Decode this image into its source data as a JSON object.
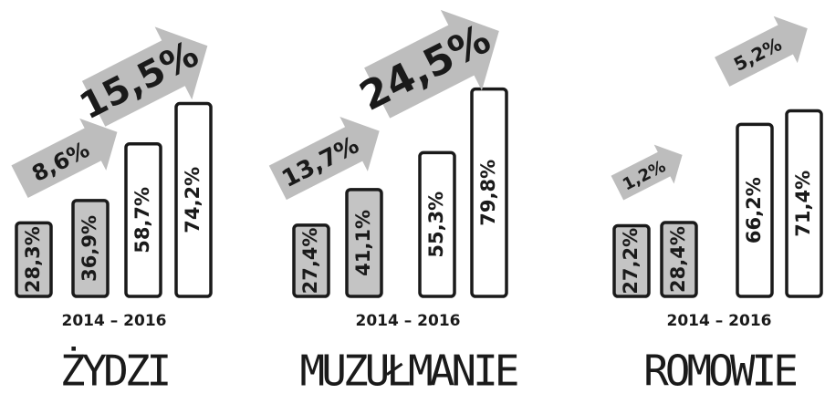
{
  "chart_data": [
    {
      "type": "bar",
      "title": "ŻYDZI",
      "subtitle": "2014 – 2016",
      "values": [
        28.3,
        36.9,
        58.7,
        74.2
      ],
      "value_labels": [
        "28,3%",
        "36,9%",
        "58,7%",
        "74,2%"
      ],
      "colors": [
        "#c4c4c4",
        "#c4c4c4",
        "#ffffff",
        "#ffffff"
      ],
      "annotations": [
        "8,6%",
        "15,5%"
      ],
      "ylim": [
        0,
        80
      ]
    },
    {
      "type": "bar",
      "title": "MUZUŁMANIE",
      "subtitle": "2014 – 2016",
      "values": [
        27.4,
        41.1,
        55.3,
        79.8
      ],
      "value_labels": [
        "27,4%",
        "41,1%",
        "55,3%",
        "79,8%"
      ],
      "colors": [
        "#c4c4c4",
        "#c4c4c4",
        "#ffffff",
        "#ffffff"
      ],
      "annotations": [
        "13,7%",
        "24,5%"
      ],
      "ylim": [
        0,
        80
      ]
    },
    {
      "type": "bar",
      "title": "ROMOWIE",
      "subtitle": "2014 – 2016",
      "values": [
        27.2,
        28.4,
        66.2,
        71.4
      ],
      "value_labels": [
        "27,2%",
        "28,4%",
        "66,2%",
        "71,4%"
      ],
      "colors": [
        "#c4c4c4",
        "#c4c4c4",
        "#ffffff",
        "#ffffff"
      ],
      "annotations": [
        "1,2%",
        "5,2%"
      ],
      "ylim": [
        0,
        80
      ]
    }
  ]
}
